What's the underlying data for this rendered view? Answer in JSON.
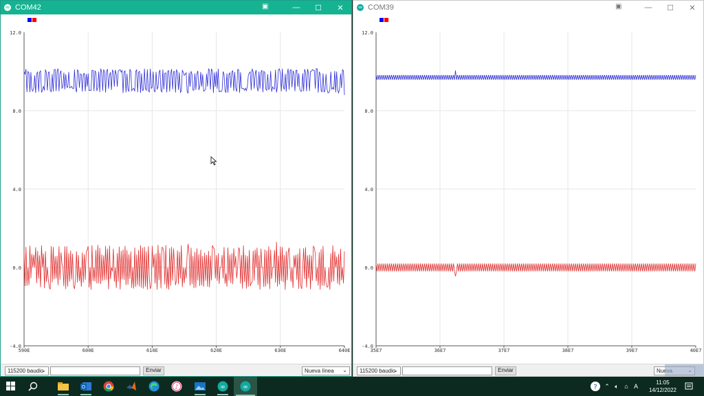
{
  "left_window": {
    "title": "COM42",
    "legend_colors": [
      "#0000ff",
      "#ff0000"
    ],
    "bottom": {
      "baud": "115200 baudio",
      "input_value": "",
      "send_label": "Enviar",
      "line_ending": "Nueva línea"
    }
  },
  "right_window": {
    "title": "COM39",
    "legend_colors": [
      "#0000ff",
      "#ff0000"
    ],
    "bottom": {
      "baud": "115200 baudio",
      "input_value": "",
      "send_label": "Enviar",
      "line_ending": "Nueva"
    }
  },
  "chart_data": [
    {
      "type": "line",
      "title": "",
      "ylim": [
        -4.0,
        12.0
      ],
      "y_ticks": [
        "12.0",
        "8.0",
        "4.0",
        "0.0",
        "-4.0"
      ],
      "x_ticks": [
        "590E",
        "600E",
        "610E",
        "620E",
        "630E",
        "640E"
      ],
      "grid": true,
      "legend_placement": "top-left",
      "series": [
        {
          "color": "#2b2bd6",
          "pattern": "pulse",
          "values": [
            10.0,
            9.8,
            10.1,
            9.0,
            10.0,
            9.2,
            10.1,
            9.9,
            9.1,
            10.0,
            9.8,
            10.1,
            8.9,
            10.0,
            9.9,
            9.2,
            10.1,
            9.0,
            10.0,
            9.8,
            9.9,
            10.1,
            9.1,
            10.0,
            9.9,
            8.9,
            10.1,
            9.8,
            10.0,
            9.2,
            10.0,
            9.9,
            10.1,
            9.0,
            9.8,
            10.1,
            9.9,
            9.1,
            10.0,
            8.8
          ]
        },
        {
          "color": "#e12a2a",
          "pattern": "noise",
          "values": [
            0.9,
            -0.8,
            1.0,
            -1.0,
            0.2,
            1.2,
            -1.1,
            0.9,
            -0.9,
            1.0,
            -0.2,
            -1.0,
            1.1,
            -0.9,
            0.8,
            -1.1,
            1.0,
            0.1,
            -0.9,
            1.2,
            -1.0,
            0.9,
            -1.0,
            1.0,
            -0.3,
            -1.1,
            1.0,
            -0.8,
            0.9,
            -1.0,
            1.3,
            -0.9,
            1.0,
            -1.1,
            0.2,
            1.0,
            -1.0,
            0.9,
            -0.9,
            -1.3
          ]
        }
      ]
    },
    {
      "type": "line",
      "title": "",
      "ylim": [
        -4.0,
        12.0
      ],
      "y_ticks": [
        "12.0",
        "8.0",
        "4.0",
        "0.0",
        "-4.0"
      ],
      "x_ticks": [
        "35E7",
        "36E7",
        "37E7",
        "38E7",
        "39E7",
        "40E7"
      ],
      "grid": true,
      "legend_placement": "top-left",
      "series": [
        {
          "color": "#2b2bd6",
          "pattern": "ripple",
          "base": 9.7,
          "amplitude": 0.12,
          "values": [
            9.7,
            9.75,
            9.7,
            9.65,
            9.7,
            9.75,
            9.7,
            9.65,
            10.0,
            9.6,
            9.7,
            9.75,
            9.7,
            9.65,
            9.7,
            9.75,
            9.7,
            9.65,
            9.7,
            9.75
          ]
        },
        {
          "color": "#e12a2a",
          "pattern": "ripple",
          "base": 0.0,
          "amplitude": 0.2,
          "values": [
            0.1,
            -0.1,
            0.15,
            -0.15,
            0.1,
            -0.1,
            0.15,
            -0.15,
            0.1,
            -0.4,
            0.15,
            -0.1,
            0.1,
            -0.15,
            0.1,
            -0.1,
            0.15,
            -0.15,
            0.1,
            -0.1
          ]
        }
      ]
    }
  ],
  "taskbar": {
    "clock_time": "11:05",
    "clock_date": "14/12/2022",
    "apps": [
      {
        "name": "windows-start-icon"
      },
      {
        "name": "search-icon"
      },
      {
        "name": "file-explorer-icon"
      },
      {
        "name": "outlook-icon"
      },
      {
        "name": "chrome-icon"
      },
      {
        "name": "matlab-icon"
      },
      {
        "name": "edge-icon"
      },
      {
        "name": "itunes-icon"
      },
      {
        "name": "photos-icon"
      },
      {
        "name": "arduino-icon"
      },
      {
        "name": "arduino-active-icon"
      }
    ]
  }
}
